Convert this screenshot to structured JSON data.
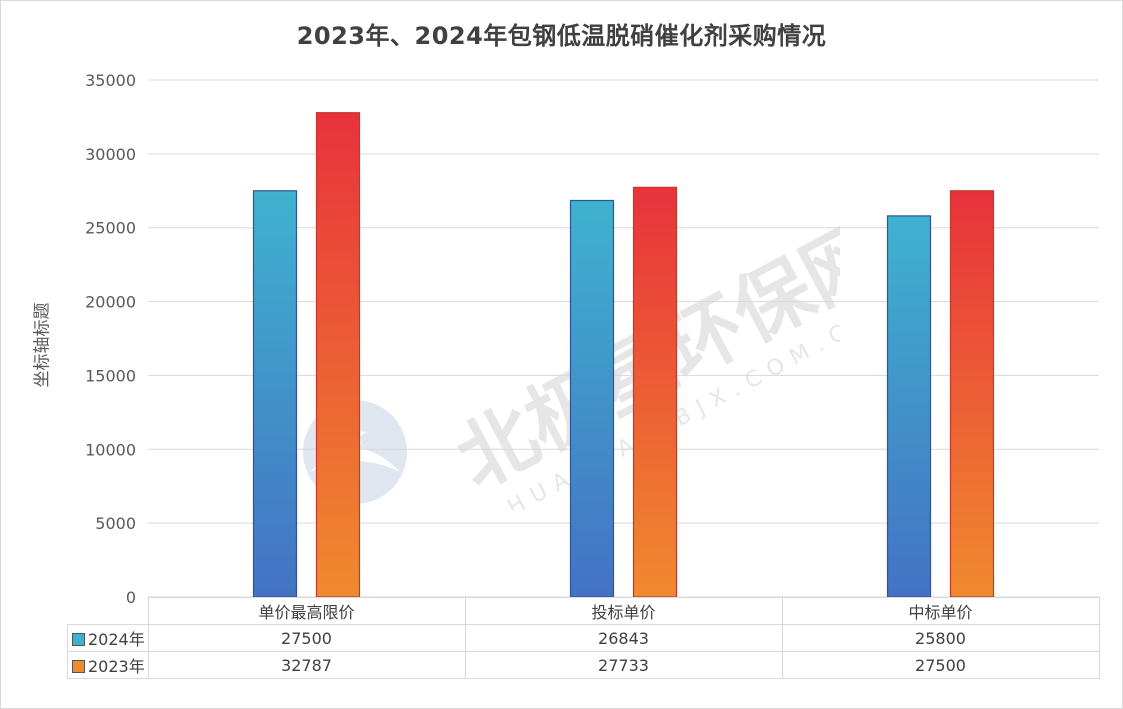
{
  "chart_data": {
    "type": "bar",
    "title": "2023年、2024年包钢低温脱硝催化剂采购情况",
    "ylabel": "坐标轴标题",
    "xlabel": "",
    "categories": [
      "单价最高限价",
      "投标单价",
      "中标单价"
    ],
    "series": [
      {
        "name": "2024年",
        "values": [
          27500,
          26843,
          25800
        ]
      },
      {
        "name": "2023年",
        "values": [
          32787,
          27733,
          27500
        ]
      }
    ],
    "ylim": [
      0,
      35000
    ],
    "yticks": [
      "0",
      "5000",
      "10000",
      "15000",
      "20000",
      "25000",
      "30000",
      "35000"
    ],
    "grid": true,
    "legend": "data-table-bottom",
    "colors": {
      "series_2024_top": "#3fb2cf",
      "series_2024_bottom": "#4472c4",
      "series_2023_top": "#e8323c",
      "series_2023_bottom": "#f08a2e",
      "grid": "#d9d9d9"
    },
    "table_rows": [
      {
        "label": "2024年",
        "values": [
          "27500",
          "26843",
          "25800"
        ]
      },
      {
        "label": "2023年",
        "values": [
          "32787",
          "27733",
          "27500"
        ]
      }
    ]
  },
  "watermark": {
    "text": "北极星环保网",
    "subtext": "HUANBAO.BJX.COM.CN"
  }
}
